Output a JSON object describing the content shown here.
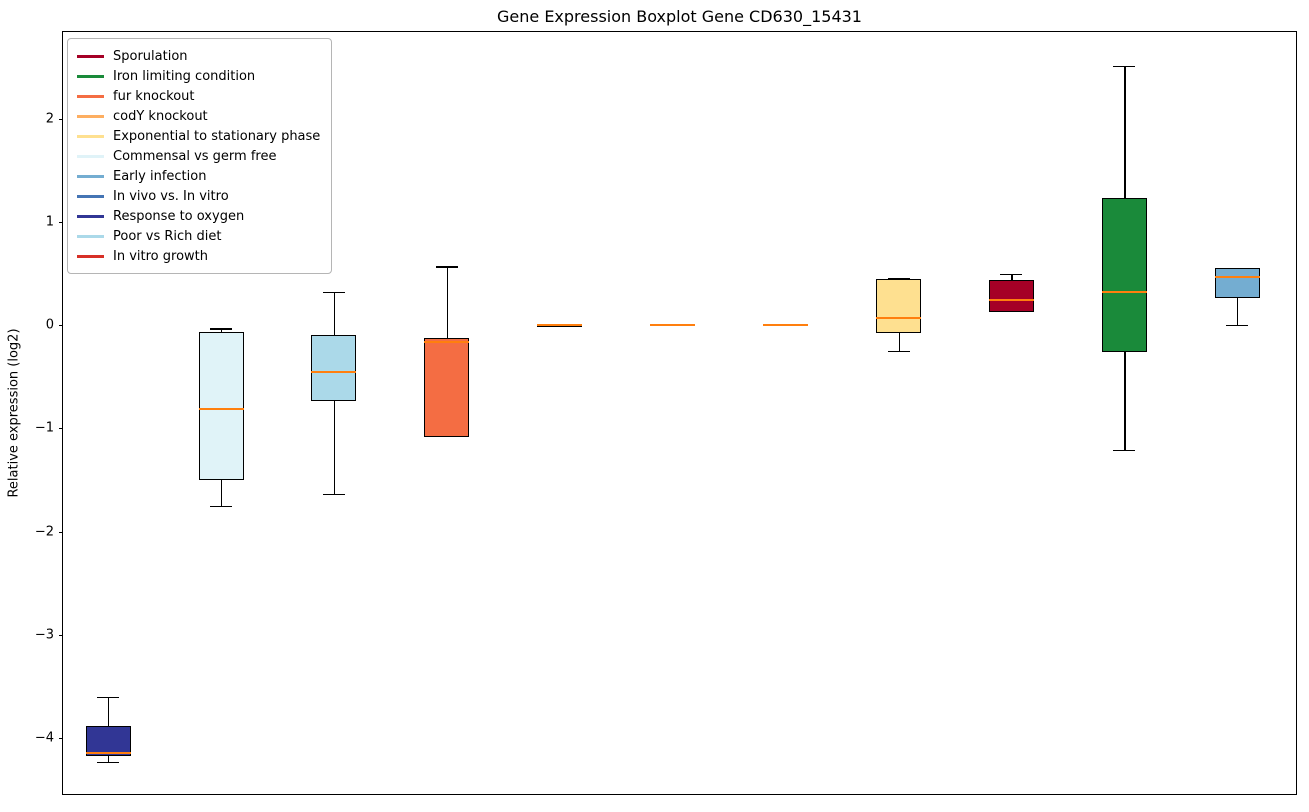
{
  "chart_data": {
    "type": "boxplot",
    "title": "Gene Expression Boxplot Gene CD630_15431",
    "ylabel": "Relative expression (log2)",
    "xlabel": "",
    "ylim": [
      -4.54,
      2.84
    ],
    "xlim": [
      0.6,
      11.52
    ],
    "yticks": [
      2,
      1,
      0,
      -1,
      -2,
      -3,
      -4
    ],
    "grid": false,
    "legend_position": "upper left",
    "median_color": "#ff7f0e",
    "legend": [
      {
        "label": "Sporulation",
        "color": "#a50026"
      },
      {
        "label": "Iron limiting condition",
        "color": "#1a8a3a"
      },
      {
        "label": "fur knockout",
        "color": "#f46d43"
      },
      {
        "label": "codY knockout",
        "color": "#fdae61"
      },
      {
        "label": "Exponential to stationary phase",
        "color": "#fee090"
      },
      {
        "label": "Commensal vs germ free",
        "color": "#e0f3f8"
      },
      {
        "label": "Early infection",
        "color": "#74add1"
      },
      {
        "label": "In vivo vs. In vitro",
        "color": "#4575b4"
      },
      {
        "label": "Response to oxygen",
        "color": "#313695"
      },
      {
        "label": "Poor vs Rich diet",
        "color": "#abd9e9"
      },
      {
        "label": "In vitro growth",
        "color": "#d73027"
      }
    ],
    "boxes": [
      {
        "label": "Response to oxygen",
        "color": "#313695",
        "whisker_low": -4.23,
        "q1": -4.17,
        "median": -4.14,
        "q3": -3.88,
        "whisker_high": -3.6
      },
      {
        "label": "Commensal vs germ free",
        "color": "#e0f3f8",
        "whisker_low": -1.75,
        "q1": -1.5,
        "median": -0.81,
        "q3": -0.07,
        "whisker_high": -0.03
      },
      {
        "label": "Poor vs Rich diet",
        "color": "#abd9e9",
        "whisker_low": -1.63,
        "q1": -0.73,
        "median": -0.45,
        "q3": -0.09,
        "whisker_high": 0.32
      },
      {
        "label": "fur knockout",
        "color": "#f46d43",
        "whisker_low": -1.08,
        "q1": -1.08,
        "median": -0.16,
        "q3": -0.12,
        "whisker_high": 0.57
      },
      {
        "label": "In vivo vs. In vitro",
        "color": "#4575b4",
        "whisker_low": -0.02,
        "q1": -0.02,
        "median": 0.0,
        "q3": 0.01,
        "whisker_high": 0.01
      },
      {
        "label": "codY knockout",
        "color": "#fdae61",
        "whisker_low": -0.01,
        "q1": -0.01,
        "median": 0.0,
        "q3": 0.01,
        "whisker_high": 0.01
      },
      {
        "label": "In vitro growth",
        "color": "#d73027",
        "whisker_low": -0.01,
        "q1": -0.01,
        "median": 0.0,
        "q3": 0.01,
        "whisker_high": 0.01
      },
      {
        "label": "Exponential to stationary phase",
        "color": "#fee090",
        "whisker_low": -0.25,
        "q1": -0.08,
        "median": 0.07,
        "q3": 0.45,
        "whisker_high": 0.46
      },
      {
        "label": "Sporulation",
        "color": "#a50026",
        "whisker_low": 0.13,
        "q1": 0.13,
        "median": 0.24,
        "q3": 0.44,
        "whisker_high": 0.5
      },
      {
        "label": "Iron limiting condition",
        "color": "#1a8a3a",
        "whisker_low": -1.21,
        "q1": -0.26,
        "median": 0.32,
        "q3": 1.23,
        "whisker_high": 2.51
      },
      {
        "label": "Early infection",
        "color": "#74add1",
        "whisker_low": 0.0,
        "q1": 0.26,
        "median": 0.47,
        "q3": 0.55,
        "whisker_high": 0.55
      }
    ]
  }
}
